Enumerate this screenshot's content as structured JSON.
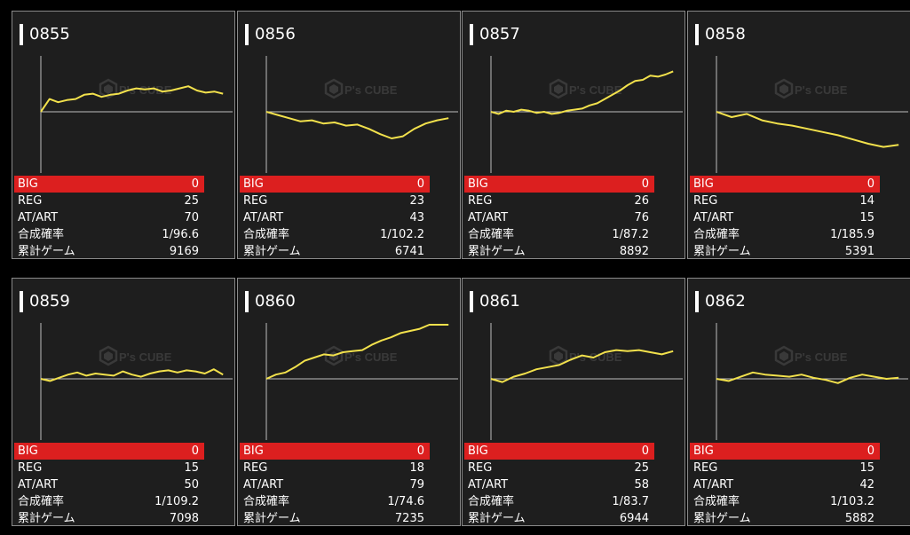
{
  "colors": {
    "background": "#000000",
    "card_background": "#1e1e1e",
    "card_border": "#8a8a8a",
    "graph_line": "#f2e14c",
    "axis_line": "#bfbfbf",
    "big_row": "#dc1f1f"
  },
  "labels": {
    "big": "BIG",
    "reg": "REG",
    "at_art": "AT/ART",
    "combined": "合成確率",
    "total_games": "累計ゲーム"
  },
  "watermark": {
    "brand": "P's CUBE",
    "icon": "cube-logo-icon"
  },
  "machines": [
    {
      "id": "0855",
      "big": "0",
      "reg": "25",
      "at_art": "70",
      "combined": "1/96.6",
      "total_games": "9169",
      "graph": [
        0,
        120,
        90,
        110,
        120,
        160,
        170,
        140,
        160,
        170,
        200,
        220,
        210,
        220,
        190,
        200,
        220,
        240,
        200,
        180,
        190,
        170
      ]
    },
    {
      "id": "0856",
      "big": "0",
      "reg": "23",
      "at_art": "43",
      "combined": "1/102.2",
      "total_games": "6741",
      "graph": [
        0,
        -30,
        -60,
        -90,
        -80,
        -110,
        -100,
        -130,
        -120,
        -160,
        -210,
        -250,
        -230,
        -160,
        -110,
        -80,
        -60
      ]
    },
    {
      "id": "0857",
      "big": "0",
      "reg": "26",
      "at_art": "76",
      "combined": "1/87.2",
      "total_games": "8892",
      "graph": [
        0,
        -20,
        10,
        0,
        20,
        10,
        -10,
        0,
        -20,
        -10,
        10,
        20,
        30,
        60,
        80,
        120,
        160,
        200,
        250,
        290,
        300,
        340,
        330,
        350,
        380
      ]
    },
    {
      "id": "0858",
      "big": "0",
      "reg": "14",
      "at_art": "15",
      "combined": "1/185.9",
      "total_games": "5391",
      "graph": [
        0,
        -50,
        -20,
        -80,
        -110,
        -130,
        -160,
        -190,
        -220,
        -260,
        -300,
        -330,
        -310
      ]
    },
    {
      "id": "0859",
      "big": "0",
      "reg": "15",
      "at_art": "50",
      "combined": "1/109.2",
      "total_games": "7098",
      "graph": [
        0,
        -20,
        10,
        40,
        60,
        30,
        50,
        40,
        30,
        70,
        40,
        20,
        50,
        70,
        80,
        60,
        80,
        70,
        50,
        90,
        40
      ]
    },
    {
      "id": "0860",
      "big": "0",
      "reg": "18",
      "at_art": "79",
      "combined": "1/74.6",
      "total_games": "7235",
      "graph": [
        0,
        40,
        60,
        110,
        170,
        200,
        230,
        220,
        250,
        260,
        270,
        320,
        360,
        390,
        430,
        450,
        470,
        520,
        530,
        510
      ]
    },
    {
      "id": "0861",
      "big": "0",
      "reg": "25",
      "at_art": "58",
      "combined": "1/83.7",
      "total_games": "6944",
      "graph": [
        0,
        -30,
        20,
        50,
        90,
        110,
        130,
        180,
        220,
        200,
        250,
        270,
        260,
        270,
        250,
        230,
        260
      ]
    },
    {
      "id": "0862",
      "big": "0",
      "reg": "15",
      "at_art": "42",
      "combined": "1/103.2",
      "total_games": "5882",
      "graph": [
        0,
        -20,
        20,
        60,
        40,
        30,
        20,
        40,
        10,
        -10,
        -40,
        10,
        40,
        20,
        0,
        10
      ]
    }
  ]
}
